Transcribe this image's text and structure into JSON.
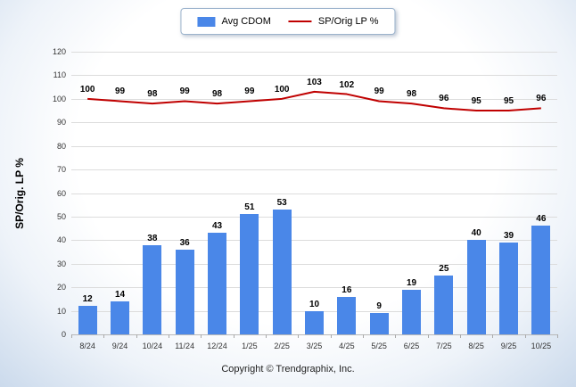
{
  "legend": {
    "items": [
      {
        "label": "Avg CDOM",
        "type": "bar"
      },
      {
        "label": "SP/Orig LP %",
        "type": "line"
      }
    ]
  },
  "footer": {
    "text": "Copyright © Trendgraphix, Inc."
  },
  "chart_data": {
    "type": "combo",
    "categories": [
      "8/24",
      "9/24",
      "10/24",
      "11/24",
      "12/24",
      "1/25",
      "2/25",
      "3/25",
      "4/25",
      "5/25",
      "6/25",
      "7/25",
      "8/25",
      "9/25",
      "10/25"
    ],
    "series": [
      {
        "name": "Avg CDOM",
        "type": "bar",
        "color": "#4a87e8",
        "values": [
          12,
          14,
          38,
          36,
          43,
          51,
          53,
          10,
          16,
          9,
          19,
          25,
          40,
          39,
          46
        ]
      },
      {
        "name": "SP/Orig LP %",
        "type": "line",
        "color": "#c00000",
        "values": [
          100,
          99,
          98,
          99,
          98,
          99,
          100,
          103,
          102,
          99,
          98,
          96,
          95,
          95,
          96
        ]
      }
    ],
    "title": "",
    "xlabel": "",
    "ylabel": "SP/Orig. LP %",
    "ylim": [
      0,
      120
    ],
    "ytick_step": 10,
    "grid": true,
    "legend_position": "top-center"
  }
}
